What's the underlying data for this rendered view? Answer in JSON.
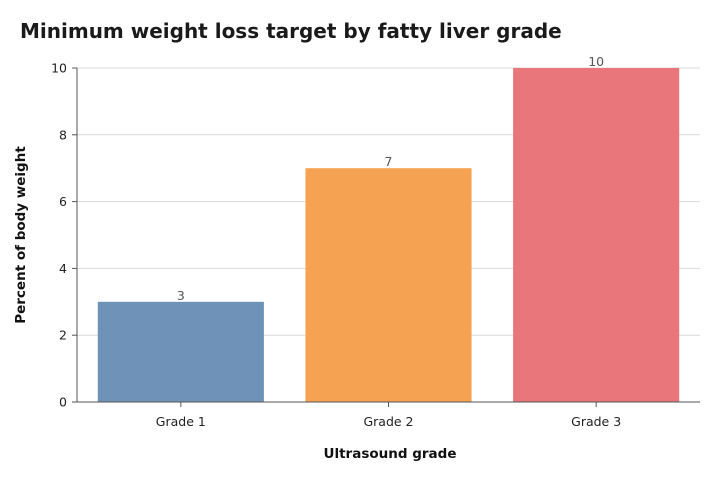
{
  "chart_data": {
    "type": "bar",
    "title": "Minimum weight loss target by fatty liver grade",
    "xlabel": "Ultrasound grade",
    "ylabel": "Percent of body weight",
    "categories": [
      "Grade 1",
      "Grade 2",
      "Grade 3"
    ],
    "values": [
      3,
      7,
      10
    ],
    "data_labels": [
      "3",
      "7",
      "10"
    ],
    "colors": [
      "#6f93b8",
      "#f5a352",
      "#e8767a"
    ],
    "ylim": [
      0,
      10
    ],
    "yticks": [
      0,
      2,
      4,
      6,
      8,
      10
    ],
    "grid": true,
    "legend": "none"
  }
}
